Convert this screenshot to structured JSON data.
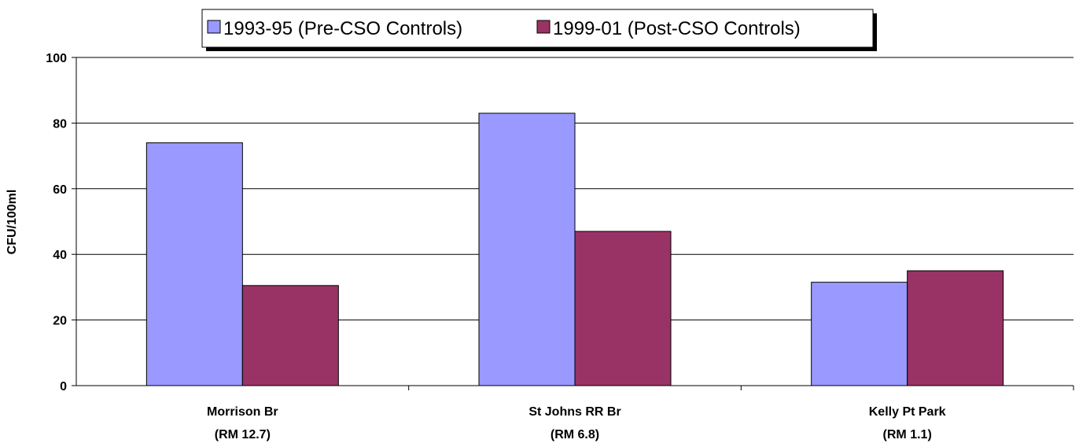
{
  "chart_data": {
    "type": "bar",
    "title": "",
    "xlabel": "",
    "ylabel": "CFU/100ml",
    "ylim": [
      0,
      100
    ],
    "yticks": [
      0,
      20,
      40,
      60,
      80,
      100
    ],
    "grid": true,
    "legend_position": "top",
    "categories": [
      [
        "Morrison Br",
        "(RM 12.7)"
      ],
      [
        "St Johns RR Br",
        "(RM  6.8)"
      ],
      [
        "Kelly Pt Park",
        "(RM  1.1)"
      ]
    ],
    "series": [
      {
        "name": "1993-95 (Pre-CSO Controls)",
        "color": "#9999ff",
        "values": [
          74,
          83,
          31.5
        ]
      },
      {
        "name": "1999-01 (Post-CSO Controls)",
        "color": "#993366",
        "values": [
          30.5,
          47,
          35
        ]
      }
    ]
  }
}
